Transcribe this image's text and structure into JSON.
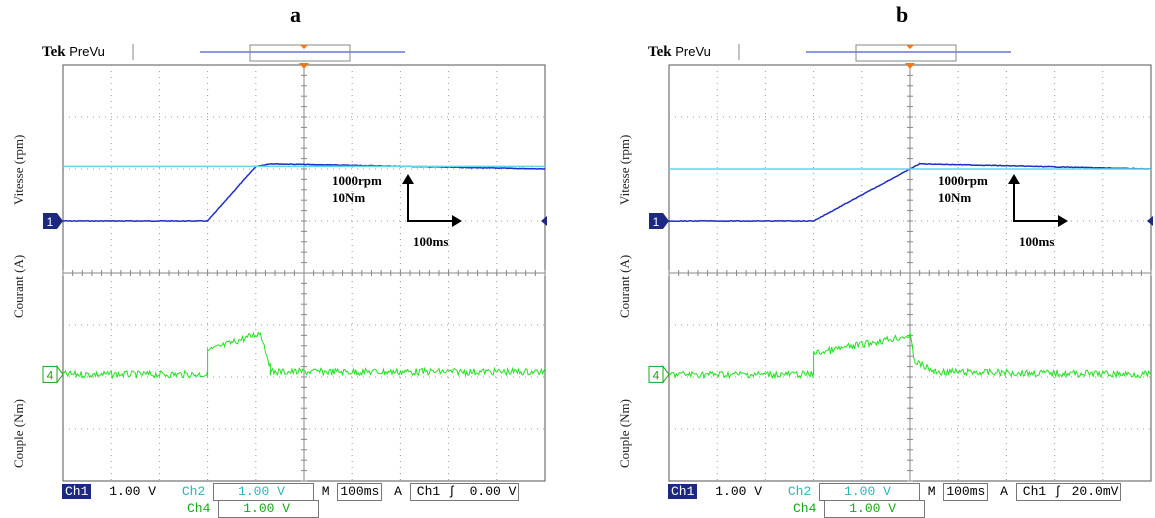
{
  "chart_data": [
    {
      "type": "line",
      "panel_label": "a",
      "header": {
        "brand": "Tek",
        "mode": "PreVu"
      },
      "ylabels": [
        "Vitesse (rpm)",
        "Courant (A)",
        "Couple (Nm)"
      ],
      "markers": {
        "ch1": "1",
        "ch4": "4"
      },
      "scale_annotation": {
        "y1": "1000rpm",
        "y2": "10Nm",
        "x": "100ms"
      },
      "status": {
        "ch1_label": "Ch1",
        "ch1_value": "1.00 V",
        "ch2_label": "Ch2",
        "ch2_value": "1.00 V",
        "time_label": "M",
        "time_value": "100ms",
        "trigger_label": "A",
        "trigger_source": "Ch1",
        "trigger_symbol": "ʃ",
        "trigger_value": "0.00 V",
        "ch4_label": "Ch4",
        "ch4_value": "1.00 V"
      },
      "series": [
        {
          "color": "#1f2ec8",
          "x": [
            0,
            3.0,
            4.0,
            4.3,
            10
          ],
          "y": [
            5.0,
            5.0,
            6.05,
            6.1,
            6.0
          ]
        },
        {
          "color": "#5fd8e8",
          "x": [
            0,
            10
          ],
          "y": [
            6.05,
            6.05
          ]
        },
        {
          "color": "#22e022",
          "x": [
            0,
            3.0,
            3.0,
            4.1,
            4.3,
            4.3,
            10
          ],
          "y": [
            2.05,
            2.05,
            2.5,
            2.85,
            2.2,
            2.1,
            2.1
          ]
        }
      ],
      "xlim": [
        0,
        10
      ],
      "ylim": [
        0,
        8
      ],
      "colors": {
        "ch1_accent": "#1d2880",
        "trigger": "#f07818"
      }
    },
    {
      "type": "line",
      "panel_label": "b",
      "header": {
        "brand": "Tek",
        "mode": "PreVu"
      },
      "ylabels": [
        "Vitesse (rpm)",
        "Courant (A)",
        "Couple (Nm)"
      ],
      "markers": {
        "ch1": "1",
        "ch4": "4"
      },
      "scale_annotation": {
        "y1": "1000rpm",
        "y2": "10Nm",
        "x": "100ms"
      },
      "status": {
        "ch1_label": "Ch1",
        "ch1_value": "1.00 V",
        "ch2_label": "Ch2",
        "ch2_value": "1.00 V",
        "time_label": "M",
        "time_value": "100ms",
        "trigger_label": "A",
        "trigger_source": "Ch1",
        "trigger_symbol": "ʃ",
        "trigger_value": "20.0mV",
        "ch4_label": "Ch4",
        "ch4_value": "1.00 V"
      },
      "series": [
        {
          "color": "#1f2ec8",
          "x": [
            0,
            3.0,
            5.0,
            5.2,
            10
          ],
          "y": [
            5.0,
            5.0,
            6.0,
            6.1,
            6.0
          ]
        },
        {
          "color": "#5fd8e8",
          "x": [
            0,
            10
          ],
          "y": [
            6.0,
            6.0
          ]
        },
        {
          "color": "#22e022",
          "x": [
            0,
            3.0,
            3.0,
            5.0,
            5.1,
            5.5,
            10
          ],
          "y": [
            2.05,
            2.05,
            2.45,
            2.8,
            2.3,
            2.1,
            2.05
          ]
        }
      ],
      "xlim": [
        0,
        10
      ],
      "ylim": [
        0,
        8
      ],
      "colors": {
        "ch1_accent": "#1d2880",
        "trigger": "#f07818"
      }
    }
  ]
}
